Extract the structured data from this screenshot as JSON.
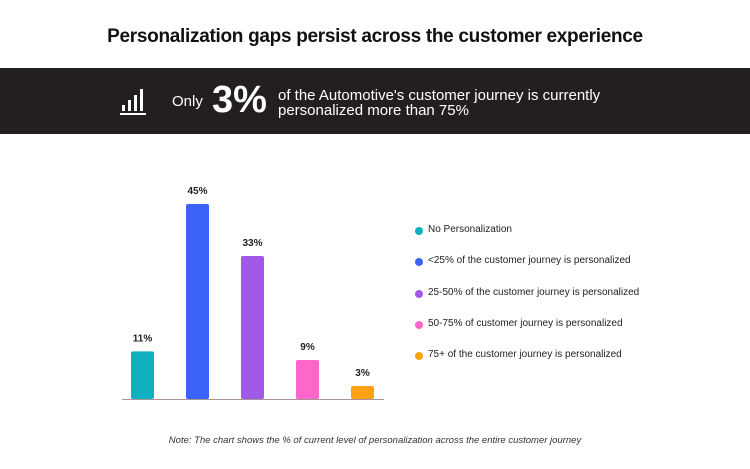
{
  "title": "Personalization gaps persist across the customer experience",
  "banner": {
    "icon": "bar-chart-icon",
    "prefix": "Only",
    "highlight": "3%",
    "message": "of the Automotive's customer journey is currently personalized more than 75%"
  },
  "chart_data": {
    "type": "bar",
    "categories": [
      "No Personalization",
      "<25% of the customer journey is personalized",
      "25-50% of the customer journey is personalized",
      "50-75% of customer journey is personalized",
      "75+ of the customer journey is personalized"
    ],
    "values": [
      11,
      45,
      33,
      9,
      3
    ],
    "data_labels": [
      "11%",
      "45%",
      "33%",
      "9%",
      "3%"
    ],
    "colors": [
      "#0fb1c1",
      "#3b63f7",
      "#a15ae8",
      "#ff66cc",
      "#ffa115"
    ],
    "ylim": [
      0,
      45
    ],
    "grid": false,
    "legend": "right"
  },
  "note": "Note: The chart shows the % of current level of personalization across the entire customer journey"
}
